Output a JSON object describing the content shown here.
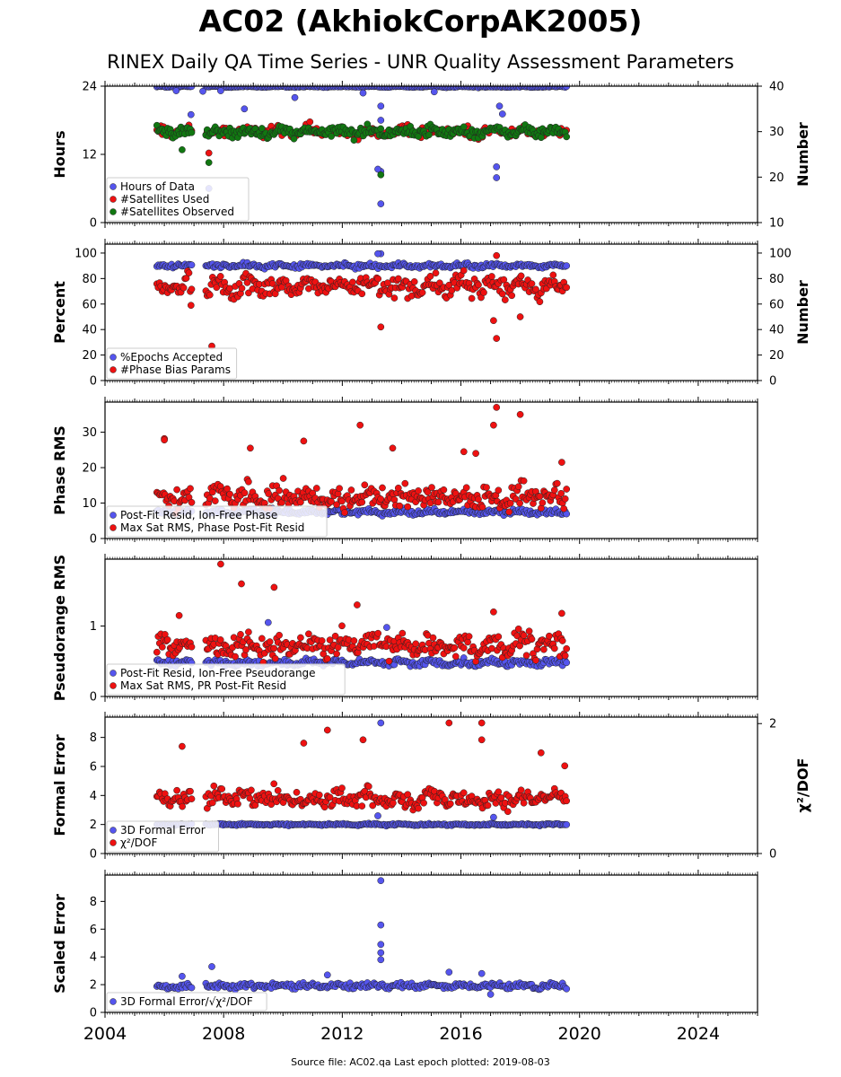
{
  "page": {
    "title": "AC02 (AkhiokCorpAK2005)",
    "subtitle": "RINEX Daily QA Time Series - UNR Quality Assessment Parameters",
    "footer": "Source file: AC02.qa Last epoch plotted: 2019-08-03"
  },
  "colors": {
    "blue": "#5555ee",
    "red": "#ee1111",
    "green": "#117711",
    "edge": "#222222"
  },
  "chart_data": [
    {
      "type": "scatter",
      "id": "hours",
      "xlim": [
        2004,
        2026
      ],
      "x_ticks": [
        "2004",
        "2008",
        "2012",
        "2016",
        "2020",
        "2024"
      ],
      "ylabel": "Hours",
      "ylim": [
        0,
        24
      ],
      "yticks": [
        "0",
        "12",
        "24"
      ],
      "ylabel_right": "Number",
      "ylim_right": [
        10,
        40
      ],
      "yticks_right": [
        "10",
        "20",
        "30",
        "40"
      ],
      "legend": [
        "Hours of Data",
        "#Satellites Used",
        "#Satellites Observed"
      ],
      "series": [
        {
          "name": "Hours of Data",
          "color": "blue",
          "axis": "left",
          "base": 23.9,
          "noise": 0.1,
          "outliers": [
            [
              2006.4,
              23.2
            ],
            [
              2006.9,
              19.0
            ],
            [
              2007.3,
              23.1
            ],
            [
              2007.5,
              6.0
            ],
            [
              2007.9,
              23.2
            ],
            [
              2008.7,
              20.0
            ],
            [
              2010.4,
              22.0
            ],
            [
              2012.7,
              22.8
            ],
            [
              2013.3,
              18.0
            ],
            [
              2013.3,
              9.0
            ],
            [
              2013.2,
              9.4
            ],
            [
              2013.3,
              3.3
            ],
            [
              2013.3,
              20.5
            ],
            [
              2017.2,
              9.8
            ],
            [
              2017.2,
              7.9
            ],
            [
              2017.3,
              20.5
            ],
            [
              2017.4,
              19.1
            ],
            [
              2015.1,
              23.0
            ]
          ]
        },
        {
          "name": "#Satellites Used",
          "color": "red",
          "axis": "right",
          "base": 30.0,
          "noise": 1.0,
          "outliers": [
            [
              2007.5,
              25.3
            ],
            [
              2009.3,
              30.2
            ]
          ]
        },
        {
          "name": "#Satellites Observed",
          "color": "green",
          "axis": "right",
          "base": 30.0,
          "noise": 1.0,
          "outliers": [
            [
              2007.5,
              23.2
            ],
            [
              2013.3,
              20.5
            ],
            [
              2006.6,
              26.0
            ]
          ]
        }
      ]
    },
    {
      "type": "scatter",
      "id": "percent",
      "xlim": [
        2004,
        2026
      ],
      "ylabel": "Percent",
      "ylim": [
        0,
        107
      ],
      "yticks": [
        "0",
        "20",
        "40",
        "60",
        "80",
        "100"
      ],
      "ylabel_right": "Number",
      "ylim_right": [
        0,
        107
      ],
      "yticks_right": [
        "0",
        "20",
        "40",
        "60",
        "80",
        "100"
      ],
      "legend": [
        "%Epochs Accepted",
        "#Phase Bias Params"
      ],
      "series": [
        {
          "name": "%Epochs Accepted",
          "color": "blue",
          "axis": "left",
          "base": 90,
          "noise": 1.5,
          "outliers": [
            [
              2013.3,
              99.5
            ],
            [
              2013.2,
              99.5
            ]
          ]
        },
        {
          "name": "#Phase Bias Params",
          "color": "red",
          "axis": "right",
          "base": 74,
          "noise": 7,
          "outliers": [
            [
              2007.6,
              27.0
            ],
            [
              2013.3,
              42.0
            ],
            [
              2017.2,
              33.0
            ],
            [
              2017.1,
              47.0
            ],
            [
              2018.0,
              50.0
            ],
            [
              2017.2,
              98.0
            ],
            [
              2006.9,
              59.0
            ]
          ]
        }
      ]
    },
    {
      "type": "scatter",
      "id": "phase",
      "xlim": [
        2004,
        2026
      ],
      "ylabel": "Phase RMS",
      "ylim": [
        0,
        38.5
      ],
      "yticks": [
        "0",
        "10",
        "20",
        "30"
      ],
      "legend": [
        "Post-Fit Resid, Ion-Free Phase",
        "Max Sat RMS, Phase Post-Fit Resid"
      ],
      "series": [
        {
          "name": "Post-Fit Resid, Ion-Free Phase",
          "color": "blue",
          "axis": "left",
          "base": 7.5,
          "noise": 0.6,
          "outliers": []
        },
        {
          "name": "Max Sat RMS, Phase Post-Fit Resid",
          "color": "red",
          "axis": "left",
          "base": 11.5,
          "noise": 3,
          "outliers": [
            [
              2006.0,
              28.2
            ],
            [
              2006.0,
              27.8
            ],
            [
              2008.9,
              25.5
            ],
            [
              2010.7,
              27.5
            ],
            [
              2012.6,
              32.0
            ],
            [
              2013.7,
              25.5
            ],
            [
              2017.1,
              32.0
            ],
            [
              2017.2,
              37.0
            ],
            [
              2018.0,
              35.0
            ],
            [
              2016.1,
              24.5
            ],
            [
              2016.5,
              24.0
            ],
            [
              2019.4,
              21.5
            ]
          ]
        }
      ]
    },
    {
      "type": "scatter",
      "id": "pseudorange",
      "xlim": [
        2004,
        2026
      ],
      "ylabel": "Pseudorange RMS",
      "ylim": [
        0,
        1.95
      ],
      "yticks": [
        "0",
        "1"
      ],
      "legend": [
        "Post-Fit Resid, Ion-Free Pseudorange",
        "Max Sat RMS, PR Post-Fit Resid"
      ],
      "series": [
        {
          "name": "Post-Fit Resid, Ion-Free Pseudorange",
          "color": "blue",
          "axis": "left",
          "base": 0.48,
          "noise": 0.04,
          "outliers": [
            [
              2013.5,
              0.98
            ],
            [
              2009.5,
              1.05
            ]
          ]
        },
        {
          "name": "Max Sat RMS, PR Post-Fit Resid",
          "color": "red",
          "axis": "left",
          "base": 0.72,
          "noise": 0.15,
          "outliers": [
            [
              2007.9,
              1.88
            ],
            [
              2008.6,
              1.6
            ],
            [
              2009.7,
              1.55
            ],
            [
              2012.5,
              1.3
            ],
            [
              2017.1,
              1.2
            ],
            [
              2019.4,
              1.18
            ],
            [
              2006.5,
              1.15
            ]
          ]
        }
      ]
    },
    {
      "type": "scatter",
      "id": "formal",
      "xlim": [
        2004,
        2026
      ],
      "ylabel": "Formal Error",
      "ylim": [
        0,
        9.4
      ],
      "yticks": [
        "0",
        "2",
        "4",
        "6",
        "8"
      ],
      "ylabel_right": "χ²/DOF",
      "ylim_right": [
        0,
        2.1
      ],
      "yticks_right": [
        "0",
        "2"
      ],
      "legend": [
        "3D Formal Error",
        "χ²/DOF"
      ],
      "series": [
        {
          "name": "3D Formal Error",
          "color": "blue",
          "axis": "left",
          "base": 2.0,
          "noise": 0.05,
          "outliers": [
            [
              2013.3,
              9.0
            ],
            [
              2013.2,
              2.6
            ],
            [
              2017.1,
              2.5
            ]
          ]
        },
        {
          "name": "χ²/DOF",
          "color": "red",
          "axis": "right",
          "base": 0.85,
          "noise": 0.12,
          "outliers": [
            [
              2006.6,
              1.65
            ],
            [
              2010.7,
              1.7
            ],
            [
              2011.5,
              1.9
            ],
            [
              2012.7,
              1.75
            ],
            [
              2015.6,
              2.01
            ],
            [
              2016.7,
              2.01
            ],
            [
              2016.7,
              1.75
            ],
            [
              2018.7,
              1.55
            ],
            [
              2019.5,
              1.35
            ]
          ]
        }
      ]
    },
    {
      "type": "scatter",
      "id": "scaled",
      "xlim": [
        2004,
        2026
      ],
      "ylabel": "Scaled Error",
      "ylim": [
        0,
        9.9
      ],
      "yticks": [
        "0",
        "2",
        "4",
        "6",
        "8"
      ],
      "legend": [
        "3D Formal Error/√χ²/DOF"
      ],
      "series": [
        {
          "name": "3D Formal Error/√χ²/DOF",
          "color": "blue",
          "axis": "left",
          "base": 1.9,
          "noise": 0.18,
          "outliers": [
            [
              2013.3,
              9.5
            ],
            [
              2013.3,
              6.3
            ],
            [
              2013.3,
              4.9
            ],
            [
              2013.3,
              4.3
            ],
            [
              2013.3,
              3.8
            ],
            [
              2007.6,
              3.3
            ],
            [
              2006.6,
              2.6
            ],
            [
              2011.5,
              2.7
            ],
            [
              2015.6,
              2.9
            ],
            [
              2016.7,
              2.8
            ],
            [
              2017.0,
              1.3
            ]
          ]
        }
      ]
    }
  ]
}
